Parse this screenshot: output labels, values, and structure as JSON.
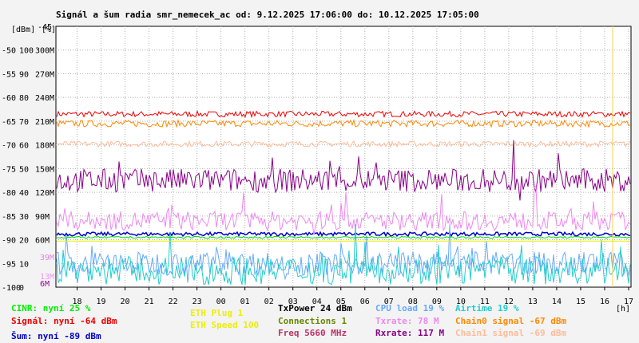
{
  "chart_data": {
    "type": "line",
    "title": "Signál a šum radia smr_nemecek_ac od: 9.12.2025 17:06:00 do: 10.12.2025 17:05:00",
    "unit_labels": {
      "dbm": "[dBm]",
      "pct": "[%]",
      "hour": "[h]"
    },
    "y_axis_dbm": [
      "-45",
      "-50",
      "-55",
      "-60",
      "-65",
      "-70",
      "-75",
      "-80",
      "-85",
      "-90",
      "-95",
      "-100"
    ],
    "y_axis_pct": [
      "100",
      "90",
      "80",
      "70",
      "60",
      "50",
      "40",
      "30",
      "20",
      "10",
      "0"
    ],
    "y_axis_rate": [
      "300M",
      "270M",
      "240M",
      "210M",
      "180M",
      "150M",
      "120M",
      "90M",
      "60M"
    ],
    "x_ticks": [
      "18",
      "19",
      "20",
      "21",
      "22",
      "23",
      "00",
      "01",
      "02",
      "03",
      "04",
      "05",
      "06",
      "07",
      "08",
      "09",
      "10",
      "11",
      "12",
      "13",
      "14",
      "15",
      "16",
      "17"
    ],
    "ylim_dbm": [
      -100,
      -45
    ],
    "grid": true,
    "low_rate_labels": [
      {
        "text": "39M",
        "color": "#dd88dd"
      },
      {
        "text": "13M",
        "color": "#ee99ee"
      },
      {
        "text": "6M",
        "color": "#990099"
      }
    ],
    "series": [
      {
        "name": "Signál",
        "color": "#ee0000",
        "axis": "dbm",
        "base": -63.5,
        "noise": 0.6
      },
      {
        "name": "Chain0 signal",
        "color": "#ff8800",
        "axis": "dbm",
        "base": -65.5,
        "noise": 0.7
      },
      {
        "name": "Chain1 signal",
        "color": "#ffbb99",
        "axis": "dbm",
        "base": -69.8,
        "noise": 0.6
      },
      {
        "name": "Šum",
        "color": "#0000cc",
        "axis": "dbm",
        "base": -88.8,
        "noise": 0.4
      },
      {
        "name": "Rxrate",
        "color": "#880088",
        "axis": "dbm",
        "base": -77.5,
        "noise": 2.5
      },
      {
        "name": "Txrate",
        "color": "#ee88ee",
        "axis": "dbm",
        "base": -86.0,
        "noise": 2.0
      },
      {
        "name": "CPU load",
        "color": "#66aaff",
        "axis": "dbm",
        "base": -95.0,
        "noise": 2.5
      },
      {
        "name": "Airtime",
        "color": "#22cccc",
        "axis": "dbm",
        "base": -96.5,
        "noise": 3.0
      },
      {
        "name": "CINR",
        "color": "#00dd00",
        "axis": "dbm",
        "base": -89.5,
        "noise": 0.2
      },
      {
        "name": "ETH Speed",
        "color": "#eeee00",
        "axis": "dbm",
        "base": -90.3,
        "noise": 0.0
      }
    ]
  },
  "legend": [
    {
      "text": "CINR: nyní 25 %",
      "color": "#00ee00"
    },
    {
      "text": "Signál: nyní -64 dBm",
      "color": "#ee0000"
    },
    {
      "text": "Šum: nyní -89 dBm",
      "color": "#0000cc"
    },
    {
      "text": "ETH Plug 1",
      "color": "#eeee00"
    },
    {
      "text": "ETH Speed 100",
      "color": "#eeee00"
    },
    {
      "text": "TxPower 24 dBm",
      "color": "#000000"
    },
    {
      "text": "Connections 1",
      "color": "#668800"
    },
    {
      "text": "Freq 5660 MHz",
      "color": "#bb3366"
    },
    {
      "text": "CPU load 19 %",
      "color": "#66aaff"
    },
    {
      "text": "Txrate: 78 M",
      "color": "#ee88ee"
    },
    {
      "text": "Rxrate: 117 M",
      "color": "#880088"
    },
    {
      "text": "Airtime 19 %",
      "color": "#22cccc"
    },
    {
      "text": "Chain0 signal -67 dBm",
      "color": "#ff8800"
    },
    {
      "text": "Chain1 signal -69 dBm",
      "color": "#ffbb99"
    }
  ]
}
